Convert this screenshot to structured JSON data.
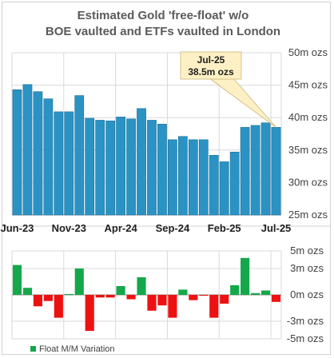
{
  "chart_data": [
    {
      "type": "bar",
      "title_lines": [
        "Estimated Gold 'free-float' w/o",
        "BOE vaulted and ETFs vaulted in London"
      ],
      "ylim": [
        25,
        50
      ],
      "y_ticks": [
        "50m ozs",
        "45m ozs",
        "40m ozs",
        "35m ozs",
        "30m ozs",
        "25m ozs"
      ],
      "y_tick_values": [
        50,
        45,
        40,
        35,
        30,
        25
      ],
      "x_tick_labels": [
        "Jun-23",
        "Nov-23",
        "Apr-24",
        "Sep-24",
        "Feb-25",
        "Jul-25"
      ],
      "categories": [
        "Jun-23",
        "Jul-23",
        "Aug-23",
        "Sep-23",
        "Oct-23",
        "Nov-23",
        "Dec-23",
        "Jan-24",
        "Feb-24",
        "Mar-24",
        "Apr-24",
        "May-24",
        "Jun-24",
        "Jul-24",
        "Aug-24",
        "Sep-24",
        "Oct-24",
        "Nov-24",
        "Dec-24",
        "Jan-25",
        "Feb-25",
        "Mar-25",
        "Apr-25",
        "May-25",
        "Jun-25",
        "Jul-25"
      ],
      "values": [
        44.3,
        45.1,
        44.0,
        42.9,
        40.9,
        40.9,
        43.4,
        39.9,
        39.6,
        39.5,
        40.1,
        39.8,
        41.4,
        39.6,
        39.0,
        36.6,
        37.1,
        36.6,
        36.6,
        34.2,
        33.2,
        34.7,
        38.5,
        38.8,
        39.2,
        38.5
      ],
      "callout": {
        "date": "Jul-25",
        "value": "38.5m ozs"
      },
      "bar_color": "#2b93c4",
      "grid": true
    },
    {
      "type": "bar",
      "y_ticks": [
        "5m ozs",
        "3m ozs",
        "0m ozs",
        "-3m ozs",
        "-5m ozs"
      ],
      "y_tick_values": [
        5,
        3,
        0,
        -3,
        -5
      ],
      "ylim": [
        -5,
        5
      ],
      "legend": {
        "label": "Float M/M Variation",
        "placement": "bottom-left"
      },
      "values": [
        3.4,
        0.8,
        -1.3,
        -0.7,
        -2.6,
        0.1,
        3.0,
        -4.1,
        -0.3,
        -0.3,
        1.0,
        -0.5,
        2.0,
        -1.8,
        -1.2,
        -2.6,
        0.6,
        -0.6,
        -0.1,
        -2.6,
        -1.0,
        1.1,
        4.2,
        0.2,
        0.5,
        -0.8
      ],
      "positive_color": "#14a84a",
      "negative_color": "#ee1111",
      "grid": true
    }
  ]
}
